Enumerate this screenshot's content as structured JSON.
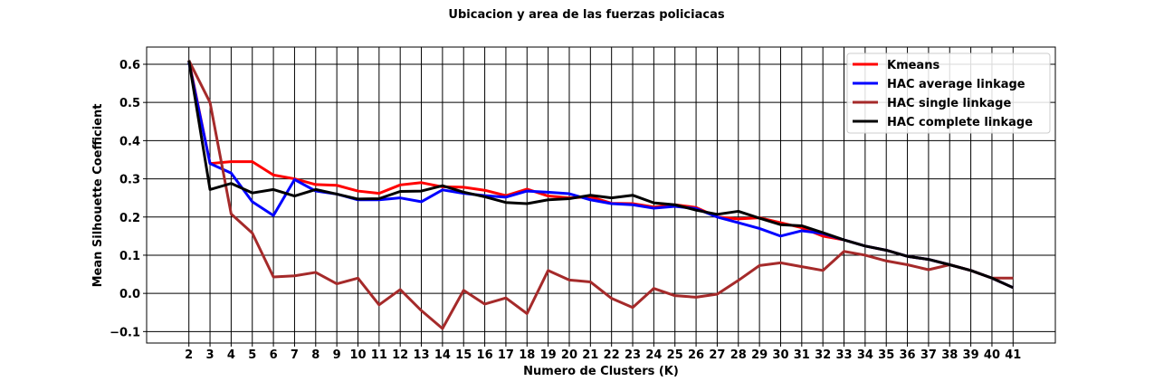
{
  "chart_data": {
    "type": "line",
    "title": "Ubicacion y area de las fuerzas policiacas",
    "xlabel": "Numero de Clusters (K)",
    "ylabel": "Mean Silhouette Coefficient",
    "xlim": [
      0,
      43
    ],
    "ylim": [
      -0.13,
      0.645
    ],
    "grid": true,
    "legend_position": "top-right",
    "x": [
      2,
      3,
      4,
      5,
      6,
      7,
      8,
      9,
      10,
      11,
      12,
      13,
      14,
      15,
      16,
      17,
      18,
      19,
      20,
      21,
      22,
      23,
      24,
      25,
      26,
      27,
      28,
      29,
      30,
      31,
      32,
      33,
      34,
      35,
      36,
      37,
      38,
      39,
      40,
      41
    ],
    "y_ticks": [
      -0.1,
      0.0,
      0.1,
      0.2,
      0.3,
      0.4,
      0.5,
      0.6
    ],
    "y_tick_labels": [
      "−0.1",
      "0.0",
      "0.1",
      "0.2",
      "0.3",
      "0.4",
      "0.5",
      "0.6"
    ],
    "series": [
      {
        "name": "Kmeans",
        "color": "#ff0000",
        "values": [
          0.61,
          0.34,
          0.345,
          0.345,
          0.31,
          0.3,
          0.285,
          0.283,
          0.268,
          0.262,
          0.284,
          0.29,
          0.279,
          0.278,
          0.27,
          0.256,
          0.273,
          0.255,
          0.25,
          0.253,
          0.236,
          0.235,
          0.226,
          0.232,
          0.225,
          0.2,
          0.195,
          0.198,
          0.185,
          0.172,
          0.15,
          0.14,
          0.124,
          0.113,
          0.097,
          0.089,
          0.075,
          0.06,
          0.04,
          0.015
        ]
      },
      {
        "name": "HAC average linkage",
        "color": "#0000ff",
        "values": [
          0.605,
          0.34,
          0.315,
          0.24,
          0.204,
          0.298,
          0.268,
          0.26,
          0.245,
          0.245,
          0.25,
          0.24,
          0.271,
          0.262,
          0.256,
          0.252,
          0.268,
          0.265,
          0.261,
          0.245,
          0.235,
          0.232,
          0.223,
          0.228,
          0.222,
          0.2,
          0.185,
          0.17,
          0.15,
          0.164,
          0.157,
          0.14,
          0.124,
          0.113,
          0.097,
          0.089,
          0.075,
          0.06,
          0.04,
          0.015
        ]
      },
      {
        "name": "HAC single linkage",
        "color": "#a52a2a",
        "values": [
          0.61,
          0.5,
          0.208,
          0.158,
          0.043,
          0.046,
          0.055,
          0.025,
          0.04,
          -0.03,
          0.01,
          -0.045,
          -0.092,
          0.008,
          -0.028,
          -0.012,
          -0.053,
          0.06,
          0.035,
          0.03,
          -0.013,
          -0.037,
          0.013,
          -0.006,
          -0.01,
          -0.002,
          0.034,
          0.073,
          0.08,
          0.07,
          0.06,
          0.11,
          0.1,
          0.085,
          0.075,
          0.062,
          0.075,
          0.06,
          0.04,
          0.04
        ]
      },
      {
        "name": "HAC complete linkage",
        "color": "#000000",
        "values": [
          0.61,
          0.272,
          0.288,
          0.263,
          0.272,
          0.255,
          0.272,
          0.26,
          0.247,
          0.248,
          0.267,
          0.268,
          0.282,
          0.265,
          0.253,
          0.238,
          0.235,
          0.245,
          0.248,
          0.257,
          0.25,
          0.257,
          0.237,
          0.232,
          0.218,
          0.207,
          0.215,
          0.197,
          0.18,
          0.177,
          0.159,
          0.14,
          0.124,
          0.113,
          0.097,
          0.089,
          0.075,
          0.06,
          0.04,
          0.015
        ]
      }
    ]
  }
}
